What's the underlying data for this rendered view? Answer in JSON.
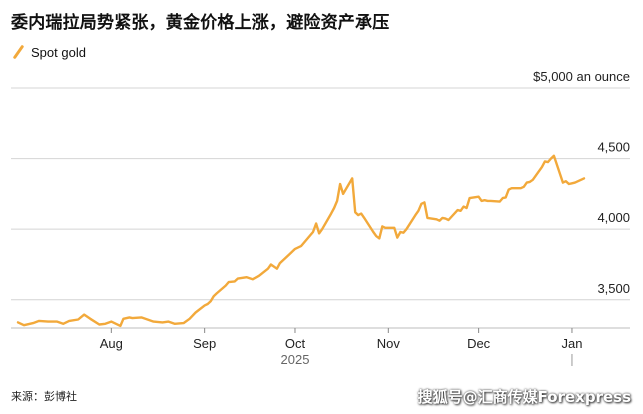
{
  "title": "委内瑞拉局势紧张，黄金价格上涨，避险资产承压",
  "source": "来源：彭博社",
  "watermark": "搜狐号@汇商传媒Forexpress",
  "colors": {
    "line": "#f2a93b",
    "grid": "#d4d4d4",
    "text": "#111111"
  },
  "chart_data": {
    "type": "line",
    "series": [
      {
        "name": "Spot gold",
        "values": [
          [
            "2025-07-01",
            3340
          ],
          [
            "2025-07-03",
            3320
          ],
          [
            "2025-07-06",
            3335
          ],
          [
            "2025-07-08",
            3350
          ],
          [
            "2025-07-11",
            3345
          ],
          [
            "2025-07-14",
            3345
          ],
          [
            "2025-07-16",
            3330
          ],
          [
            "2025-07-18",
            3350
          ],
          [
            "2025-07-21",
            3360
          ],
          [
            "2025-07-23",
            3395
          ],
          [
            "2025-07-25",
            3365
          ],
          [
            "2025-07-28",
            3325
          ],
          [
            "2025-07-30",
            3330
          ],
          [
            "2025-08-01",
            3345
          ],
          [
            "2025-08-04",
            3315
          ],
          [
            "2025-08-05",
            3365
          ],
          [
            "2025-08-07",
            3375
          ],
          [
            "2025-08-08",
            3370
          ],
          [
            "2025-08-11",
            3375
          ],
          [
            "2025-08-13",
            3360
          ],
          [
            "2025-08-15",
            3345
          ],
          [
            "2025-08-18",
            3340
          ],
          [
            "2025-08-20",
            3345
          ],
          [
            "2025-08-22",
            3330
          ],
          [
            "2025-08-25",
            3335
          ],
          [
            "2025-08-27",
            3365
          ],
          [
            "2025-08-29",
            3410
          ],
          [
            "2025-09-01",
            3460
          ],
          [
            "2025-09-02",
            3470
          ],
          [
            "2025-09-03",
            3490
          ],
          [
            "2025-09-04",
            3525
          ],
          [
            "2025-09-05",
            3545
          ],
          [
            "2025-09-08",
            3600
          ],
          [
            "2025-09-09",
            3625
          ],
          [
            "2025-09-11",
            3630
          ],
          [
            "2025-09-12",
            3650
          ],
          [
            "2025-09-15",
            3660
          ],
          [
            "2025-09-17",
            3645
          ],
          [
            "2025-09-19",
            3670
          ],
          [
            "2025-09-22",
            3720
          ],
          [
            "2025-09-23",
            3750
          ],
          [
            "2025-09-25",
            3720
          ],
          [
            "2025-09-26",
            3760
          ],
          [
            "2025-09-29",
            3820
          ],
          [
            "2025-09-30",
            3840
          ],
          [
            "2025-10-01",
            3860
          ],
          [
            "2025-10-03",
            3880
          ],
          [
            "2025-10-06",
            3955
          ],
          [
            "2025-10-07",
            3980
          ],
          [
            "2025-10-08",
            4040
          ],
          [
            "2025-10-09",
            3970
          ],
          [
            "2025-10-10",
            4000
          ],
          [
            "2025-10-13",
            4110
          ],
          [
            "2025-10-14",
            4150
          ],
          [
            "2025-10-15",
            4200
          ],
          [
            "2025-10-16",
            4320
          ],
          [
            "2025-10-17",
            4250
          ],
          [
            "2025-10-20",
            4360
          ],
          [
            "2025-10-21",
            4120
          ],
          [
            "2025-10-22",
            4100
          ],
          [
            "2025-10-23",
            4110
          ],
          [
            "2025-10-24",
            4080
          ],
          [
            "2025-10-27",
            3980
          ],
          [
            "2025-10-28",
            3950
          ],
          [
            "2025-10-29",
            3935
          ],
          [
            "2025-10-30",
            4020
          ],
          [
            "2025-10-31",
            4010
          ],
          [
            "2025-11-03",
            4010
          ],
          [
            "2025-11-04",
            3940
          ],
          [
            "2025-11-05",
            3980
          ],
          [
            "2025-11-06",
            3975
          ],
          [
            "2025-11-07",
            4000
          ],
          [
            "2025-11-10",
            4100
          ],
          [
            "2025-11-11",
            4130
          ],
          [
            "2025-11-12",
            4180
          ],
          [
            "2025-11-13",
            4190
          ],
          [
            "2025-11-14",
            4080
          ],
          [
            "2025-11-17",
            4070
          ],
          [
            "2025-11-18",
            4060
          ],
          [
            "2025-11-19",
            4080
          ],
          [
            "2025-11-20",
            4075
          ],
          [
            "2025-11-21",
            4065
          ],
          [
            "2025-11-24",
            4135
          ],
          [
            "2025-11-25",
            4130
          ],
          [
            "2025-11-26",
            4160
          ],
          [
            "2025-11-27",
            4150
          ],
          [
            "2025-11-28",
            4220
          ],
          [
            "2025-12-01",
            4230
          ],
          [
            "2025-12-02",
            4200
          ],
          [
            "2025-12-03",
            4205
          ],
          [
            "2025-12-04",
            4200
          ],
          [
            "2025-12-05",
            4200
          ],
          [
            "2025-12-08",
            4195
          ],
          [
            "2025-12-09",
            4220
          ],
          [
            "2025-12-10",
            4225
          ],
          [
            "2025-12-11",
            4280
          ],
          [
            "2025-12-12",
            4290
          ],
          [
            "2025-12-15",
            4290
          ],
          [
            "2025-12-16",
            4300
          ],
          [
            "2025-12-17",
            4330
          ],
          [
            "2025-12-18",
            4335
          ],
          [
            "2025-12-19",
            4350
          ],
          [
            "2025-12-22",
            4440
          ],
          [
            "2025-12-23",
            4480
          ],
          [
            "2025-12-24",
            4475
          ],
          [
            "2025-12-25",
            4500
          ],
          [
            "2025-12-26",
            4520
          ],
          [
            "2025-12-29",
            4330
          ],
          [
            "2025-12-30",
            4340
          ],
          [
            "2025-12-31",
            4320
          ],
          [
            "2026-01-01",
            4325
          ],
          [
            "2026-01-02",
            4330
          ],
          [
            "2026-01-05",
            4360
          ]
        ]
      }
    ],
    "y_ticks": [
      {
        "value": 5000,
        "label": "$5,000 an ounce"
      },
      {
        "value": 4500,
        "label": "4,500"
      },
      {
        "value": 4000,
        "label": "4,000"
      },
      {
        "value": 3500,
        "label": "3,500"
      }
    ],
    "x_ticks": [
      {
        "date": "2025-08-01",
        "label": "Aug"
      },
      {
        "date": "2025-09-01",
        "label": "Sep"
      },
      {
        "date": "2025-10-01",
        "label": "Oct"
      },
      {
        "date": "2025-11-01",
        "label": "Nov"
      },
      {
        "date": "2025-12-01",
        "label": "Dec"
      },
      {
        "date": "2026-01-01",
        "label": "Jan"
      }
    ],
    "x_year_label": "2025",
    "ylim": [
      3300,
      5000
    ],
    "grid": true,
    "legend": "top-left"
  }
}
